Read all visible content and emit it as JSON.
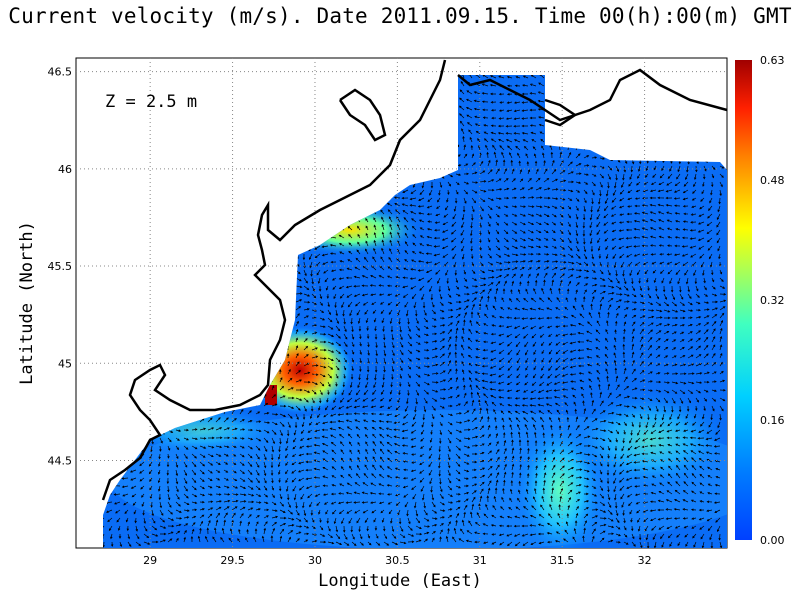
{
  "title": "Current velocity (m/s). Date 2011.09.15. Time 00(h):00(m) GMT",
  "depth_label": "Z = 2.5 m",
  "chart_data": {
    "type": "heatmap",
    "subtype": "vector field over map",
    "xlabel": "Longitude (East)",
    "ylabel": "Latitude (North)",
    "xlim": [
      28.55,
      32.5
    ],
    "ylim": [
      44.05,
      46.57
    ],
    "xticks": [
      "29",
      "29.5",
      "30",
      "30.5",
      "31",
      "31.5",
      "32"
    ],
    "yticks": [
      "46.5",
      "46",
      "45.5",
      "45",
      "44.5"
    ],
    "grid": "dotted",
    "colorbar": {
      "min": 0.0,
      "max": 0.63,
      "ticks": [
        "0.63",
        "0.48",
        "0.32",
        "0.16",
        "0.00"
      ],
      "colormap": "jet",
      "placement": "right"
    },
    "land_color": "#ffffff",
    "coastline_color": "#000000",
    "max_speed_region": {
      "lon": 29.75,
      "lat": 44.85,
      "value": 0.63
    }
  }
}
